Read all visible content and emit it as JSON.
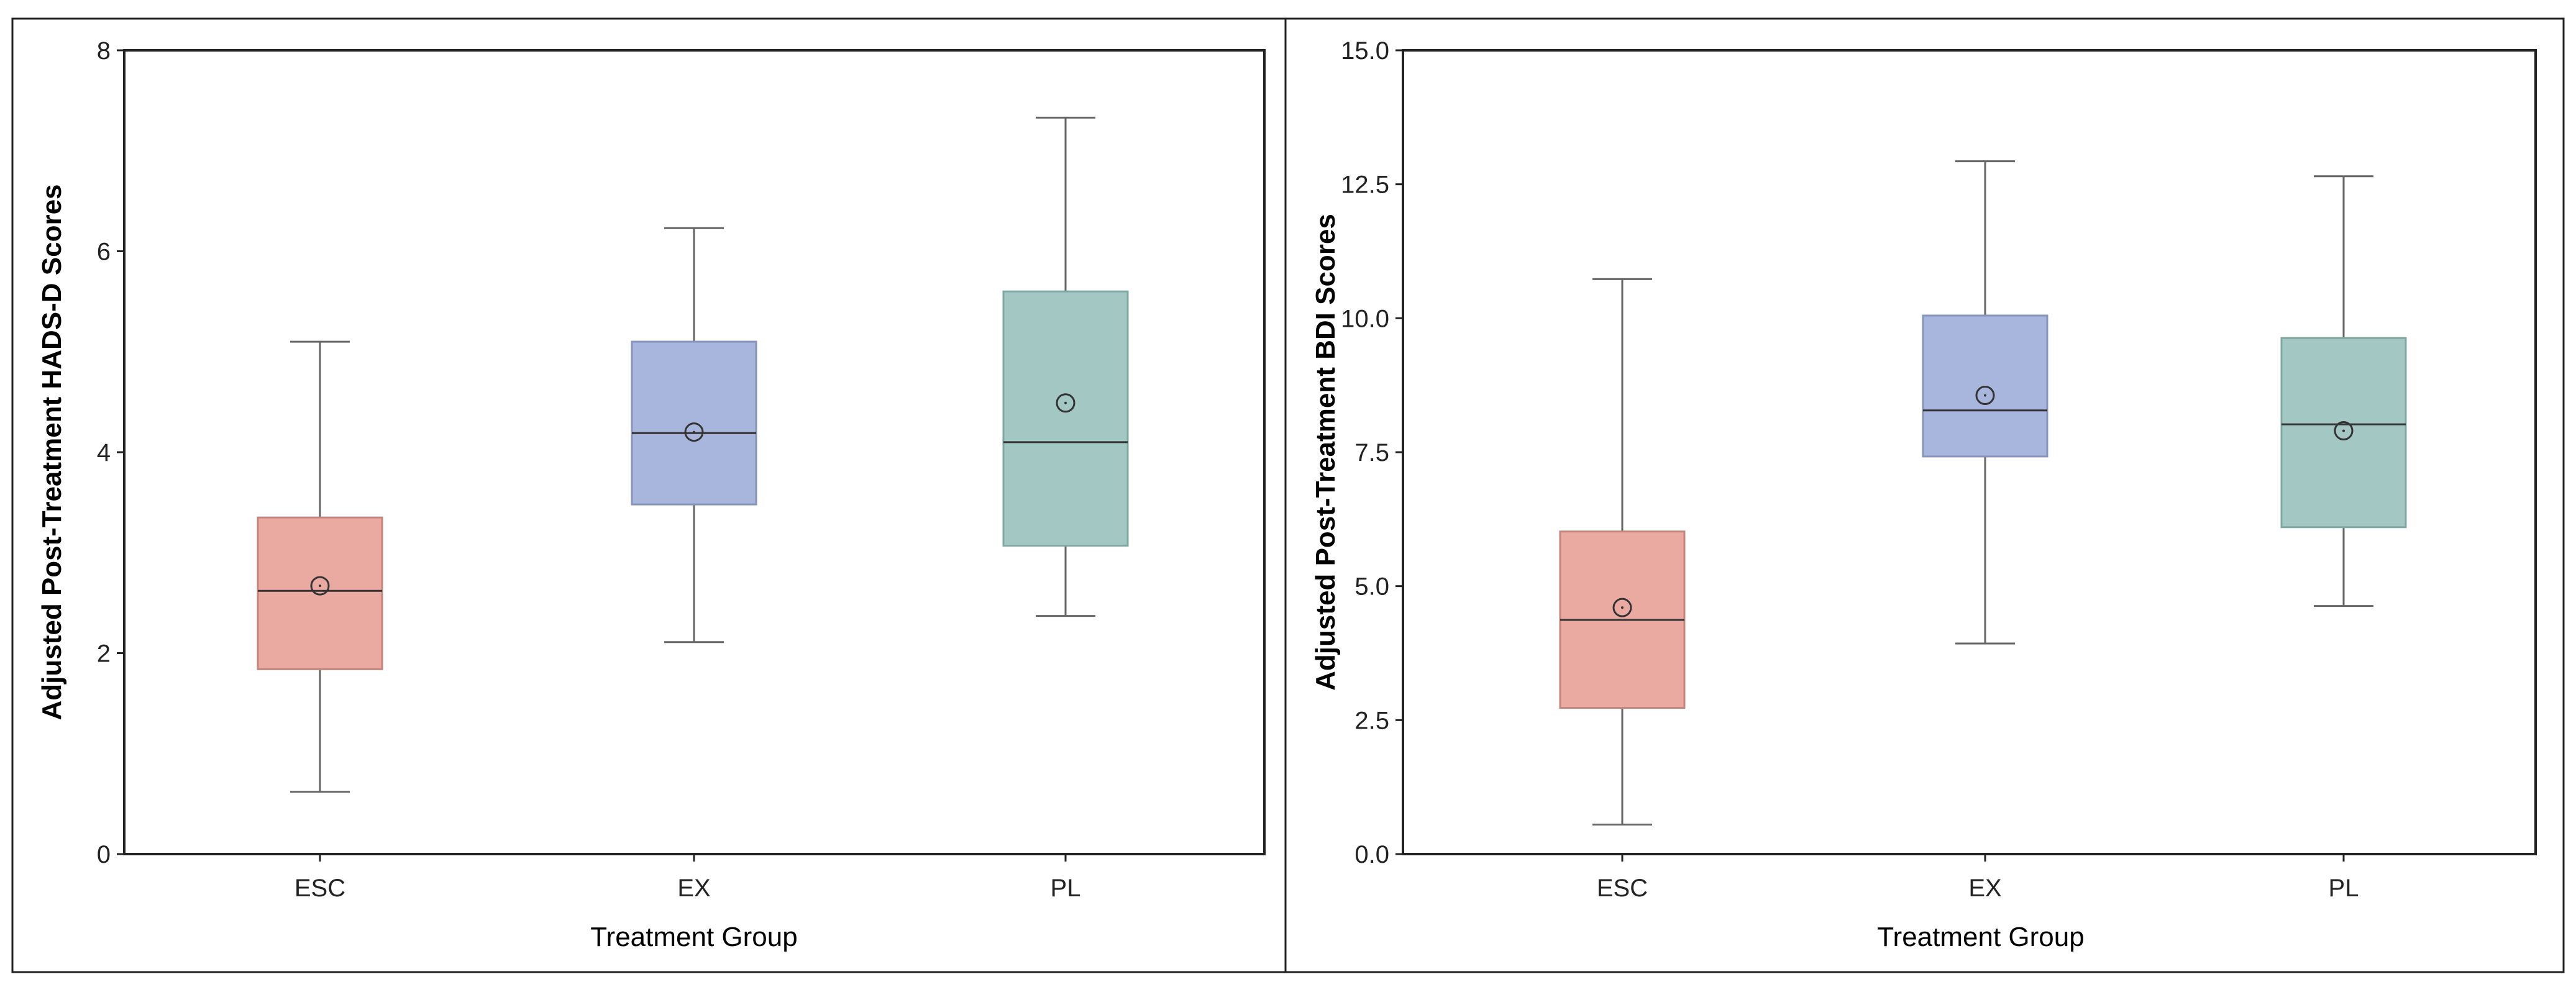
{
  "colors": {
    "ESC": "#eaa9a1",
    "EX": "#a8b5dd",
    "PL": "#a3c8c3",
    "ESC_edge": "#c4857d",
    "EX_edge": "#8794bb",
    "PL_edge": "#7fa8a2",
    "whisker": "#666666",
    "frame": "#222222"
  },
  "chart_data": [
    {
      "type": "box",
      "title": "",
      "xlabel": "Treatment Group",
      "ylabel": "Adjusted Post-Treatment HADS-D Scores",
      "ylim": [
        0,
        8
      ],
      "yticks": [
        0,
        2,
        4,
        6,
        8
      ],
      "ytick_labels": [
        "0",
        "2",
        "4",
        "6",
        "8"
      ],
      "categories": [
        "ESC",
        "EX",
        "PL"
      ],
      "boxes": [
        {
          "group": "ESC",
          "min": 0.62,
          "q1": 1.84,
          "median": 2.62,
          "q3": 3.35,
          "max": 5.1,
          "mean": 2.67
        },
        {
          "group": "EX",
          "min": 2.11,
          "q1": 3.48,
          "median": 4.19,
          "q3": 5.1,
          "max": 6.23,
          "mean": 4.2
        },
        {
          "group": "PL",
          "min": 2.37,
          "q1": 3.07,
          "median": 4.1,
          "q3": 5.6,
          "max": 7.33,
          "mean": 4.49
        }
      ]
    },
    {
      "type": "box",
      "title": "",
      "xlabel": "Treatment Group",
      "ylabel": "Adjusted Post-Treatment BDI Scores",
      "ylim": [
        0,
        15
      ],
      "yticks": [
        0,
        2.5,
        5,
        7.5,
        10,
        12.5,
        15
      ],
      "ytick_labels": [
        "0.0",
        "2.5",
        "5.0",
        "7.5",
        "10.0",
        "12.5",
        "15.0"
      ],
      "categories": [
        "ESC",
        "EX",
        "PL"
      ],
      "boxes": [
        {
          "group": "ESC",
          "min": 0.55,
          "q1": 2.73,
          "median": 4.37,
          "q3": 6.02,
          "max": 10.73,
          "mean": 4.6
        },
        {
          "group": "EX",
          "min": 3.93,
          "q1": 7.42,
          "median": 8.28,
          "q3": 10.05,
          "max": 12.93,
          "mean": 8.56
        },
        {
          "group": "PL",
          "min": 4.63,
          "q1": 6.1,
          "median": 8.02,
          "q3": 9.63,
          "max": 12.65,
          "mean": 7.9
        }
      ]
    }
  ]
}
